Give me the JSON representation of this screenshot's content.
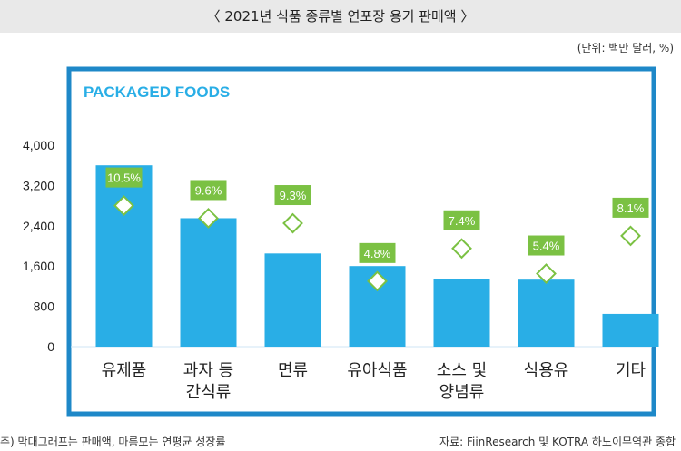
{
  "header": {
    "title": "〈 2021년 식품 종류별 연포장 용기 판매액 〉",
    "unit": "(단위: 백만 달러, %)"
  },
  "footer": {
    "note": "주) 막대그래프는 판매액, 마름모는 연평균 성장률",
    "source": "자료: FiinResearch 및 KOTRA 하노이무역관 종합"
  },
  "colors": {
    "frame": "#1e88c8",
    "bar": "#29aee6",
    "label_bg": "#7bc143",
    "diamond": "#7bc143"
  },
  "chart_data": {
    "type": "bar",
    "panel_title": "PACKAGED FOODS",
    "categories": [
      [
        "유제품"
      ],
      [
        "과자 등",
        "간식류"
      ],
      [
        "면류"
      ],
      [
        "유아식품"
      ],
      [
        "소스 및",
        "양념류"
      ],
      [
        "식용유"
      ],
      [
        "기타"
      ]
    ],
    "values": [
      3600,
      2550,
      1850,
      1600,
      1350,
      1330,
      650
    ],
    "growth_rates": [
      10.5,
      9.6,
      9.3,
      4.8,
      7.4,
      5.4,
      8.1
    ],
    "growth_labels": [
      "10.5%",
      "9.6%",
      "9.3%",
      "4.8%",
      "7.4%",
      "5.4%",
      "8.1%"
    ],
    "diamond_positions_on_sales_axis": [
      2800,
      2550,
      2450,
      1300,
      1950,
      1450,
      2200
    ],
    "y_ticks": [
      "4,000",
      "3,200",
      "2,400",
      "1,600",
      "800",
      "0"
    ],
    "y_tick_values": [
      4000,
      3200,
      2400,
      1600,
      800,
      0
    ],
    "ylim": [
      0,
      4000
    ]
  }
}
